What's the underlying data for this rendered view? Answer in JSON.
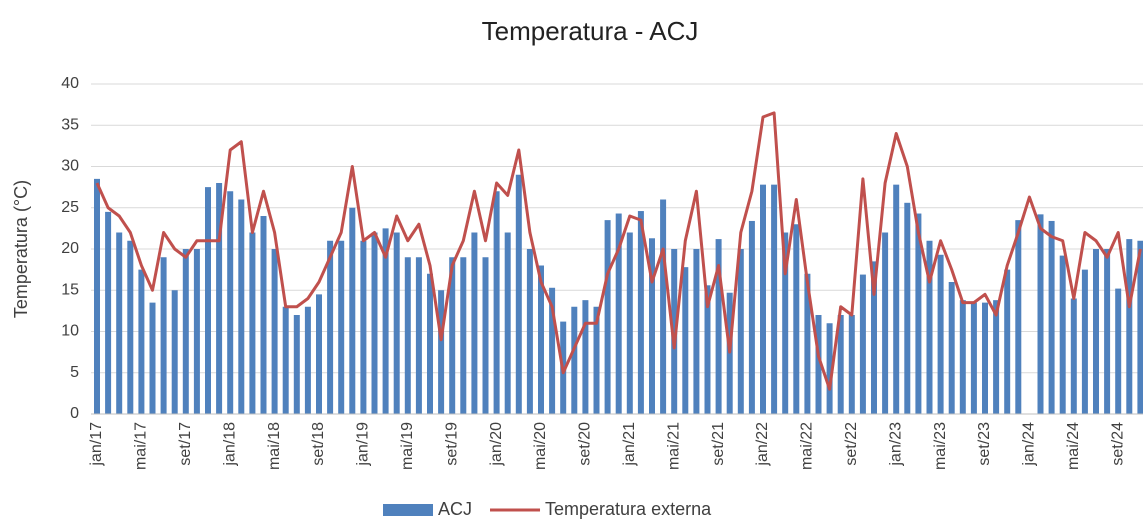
{
  "chart_data": {
    "type": "bar-line",
    "title": "Temperatura - ACJ",
    "y_label": "Temperatura (°C)",
    "categories": [
      "jan/17",
      null,
      null,
      null,
      "mai/17",
      null,
      null,
      null,
      "set/17",
      null,
      null,
      null,
      "jan/18",
      null,
      null,
      null,
      "mai/18",
      null,
      null,
      null,
      "set/18",
      null,
      null,
      null,
      "jan/19",
      null,
      null,
      null,
      "mai/19",
      null,
      null,
      null,
      "set/19",
      null,
      null,
      null,
      "jan/20",
      null,
      null,
      null,
      "mai/20",
      null,
      null,
      null,
      "set/20",
      null,
      null,
      null,
      "jan/21",
      null,
      null,
      null,
      "mai/21",
      null,
      null,
      null,
      "set/21",
      null,
      null,
      null,
      "jan/22",
      null,
      null,
      null,
      "mai/22",
      null,
      null,
      null,
      "set/22",
      null,
      null,
      null,
      "jan/23",
      null,
      null,
      null,
      "mai/23",
      null,
      null,
      null,
      "set/23",
      null,
      null,
      null,
      "jan/24",
      null,
      null,
      null,
      "mai/24",
      null,
      null,
      null,
      "set/24",
      null,
      null
    ],
    "series": [
      {
        "name": "ACJ",
        "color": "#4f81bd",
        "kind": "bar",
        "values": [
          28.5,
          24.5,
          22,
          21,
          17.5,
          13.5,
          19,
          15,
          20,
          20,
          27.5,
          28,
          27,
          26,
          22,
          24,
          20,
          13,
          12,
          13,
          14.5,
          21,
          21,
          25,
          21,
          22,
          22.5,
          22,
          19,
          19,
          17,
          15,
          19,
          19,
          22,
          19,
          27,
          22,
          29,
          20,
          18,
          15.3,
          11.2,
          13,
          13.8,
          13,
          23.5,
          24.3,
          22,
          24.6,
          21.3,
          26,
          20,
          17.8,
          20,
          15.6,
          21.2,
          14.7,
          20,
          23.4,
          27.8,
          27.8,
          22,
          23,
          17,
          12,
          11,
          12,
          12,
          16.9,
          18.5,
          22,
          27.8,
          25.6,
          24.3,
          21,
          19.3,
          16,
          13.8,
          13.5,
          13.5,
          13.8,
          17.5,
          23.5,
          null,
          24.2,
          23.4,
          19.2,
          14,
          17.5,
          20,
          20,
          15.2,
          21.2,
          21
        ]
      },
      {
        "name": "Temperatura externa",
        "color": "#c0504d",
        "kind": "line",
        "values": [
          28,
          25,
          24,
          22,
          18,
          15,
          22,
          20,
          19,
          21,
          21,
          21,
          32,
          33,
          22,
          27,
          22,
          13,
          13,
          14,
          16,
          19,
          22,
          30,
          21,
          22,
          19,
          24,
          21,
          23,
          18,
          9,
          18,
          21,
          27,
          21,
          28,
          26.5,
          32,
          22,
          16,
          13,
          5,
          8,
          11,
          11,
          17,
          20,
          24,
          23.5,
          16,
          20,
          8,
          21,
          27,
          13,
          18,
          7.5,
          22,
          27,
          36,
          36.5,
          17,
          26,
          16,
          7,
          3,
          13,
          12,
          28.5,
          14.5,
          28,
          34,
          30,
          22,
          16,
          21,
          17.5,
          13.5,
          13.5,
          14.5,
          12,
          18,
          22,
          26.3,
          22.5,
          21.5,
          21,
          14,
          22,
          21,
          19,
          22,
          13,
          20
        ]
      }
    ],
    "ylim": [
      0,
      40
    ],
    "yticks": [
      0,
      5,
      10,
      15,
      20,
      25,
      30,
      35,
      40
    ],
    "grid": true,
    "legend": "bottom"
  }
}
